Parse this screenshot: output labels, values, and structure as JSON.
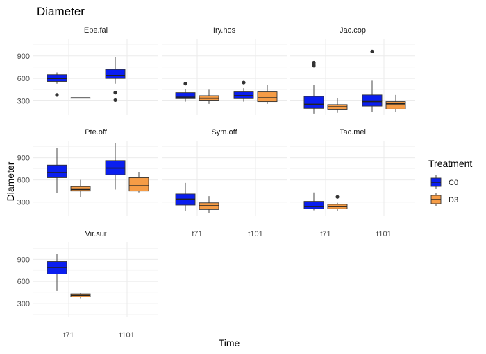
{
  "chart_data": {
    "type": "boxplot",
    "title": "Diameter",
    "xlabel": "Time",
    "ylabel": "Diameter",
    "ylim": [
      110,
      1130
    ],
    "y_ticks": [
      300,
      600,
      900
    ],
    "x_categories": [
      "t71",
      "t101"
    ],
    "grid": "on",
    "legend": {
      "title": "Treatment",
      "placement": "right",
      "entries": [
        {
          "name": "C0",
          "color": "#0a1ef0"
        },
        {
          "name": "D3",
          "color": "#f59c46"
        }
      ]
    },
    "panels": [
      {
        "name": "Epe.fal",
        "boxes": [
          {
            "time": "t71",
            "treatment": "C0",
            "min": 530,
            "q1": 560,
            "median": 600,
            "q3": 650,
            "max": 680,
            "outliers": [
              380
            ]
          },
          {
            "time": "t71",
            "treatment": "D3",
            "min": 340,
            "q1": 340,
            "median": 340,
            "q3": 340,
            "max": 340,
            "outliers": []
          },
          {
            "time": "t101",
            "treatment": "C0",
            "min": 530,
            "q1": 600,
            "median": 640,
            "q3": 720,
            "max": 880,
            "outliers": [
              410,
              310
            ]
          }
        ]
      },
      {
        "name": "Iry.hos",
        "boxes": [
          {
            "time": "t71",
            "treatment": "C0",
            "min": 290,
            "q1": 330,
            "median": 350,
            "q3": 410,
            "max": 460,
            "outliers": [
              530
            ]
          },
          {
            "time": "t71",
            "treatment": "D3",
            "min": 260,
            "q1": 300,
            "median": 335,
            "q3": 370,
            "max": 450,
            "outliers": []
          },
          {
            "time": "t101",
            "treatment": "C0",
            "min": 290,
            "q1": 330,
            "median": 370,
            "q3": 420,
            "max": 470,
            "outliers": [
              545
            ]
          },
          {
            "time": "t101",
            "treatment": "D3",
            "min": 260,
            "q1": 290,
            "median": 340,
            "q3": 420,
            "max": 510,
            "outliers": []
          }
        ]
      },
      {
        "name": "Jac.cop",
        "boxes": [
          {
            "time": "t71",
            "treatment": "C0",
            "min": 130,
            "q1": 200,
            "median": 255,
            "q3": 360,
            "max": 510,
            "outliers": [
              770,
              790,
              810
            ]
          },
          {
            "time": "t71",
            "treatment": "D3",
            "min": 140,
            "q1": 180,
            "median": 220,
            "q3": 250,
            "max": 340,
            "outliers": []
          },
          {
            "time": "t101",
            "treatment": "C0",
            "min": 150,
            "q1": 230,
            "median": 290,
            "q3": 380,
            "max": 570,
            "outliers": [
              960
            ]
          },
          {
            "time": "t101",
            "treatment": "D3",
            "min": 150,
            "q1": 190,
            "median": 260,
            "q3": 290,
            "max": 380,
            "outliers": []
          }
        ]
      },
      {
        "name": "Pte.off",
        "boxes": [
          {
            "time": "t71",
            "treatment": "C0",
            "min": 420,
            "q1": 630,
            "median": 700,
            "q3": 800,
            "max": 1030,
            "outliers": []
          },
          {
            "time": "t71",
            "treatment": "D3",
            "min": 370,
            "q1": 450,
            "median": 470,
            "q3": 510,
            "max": 600,
            "outliers": []
          },
          {
            "time": "t101",
            "treatment": "C0",
            "min": 470,
            "q1": 670,
            "median": 760,
            "q3": 860,
            "max": 1100,
            "outliers": []
          },
          {
            "time": "t101",
            "treatment": "D3",
            "min": 430,
            "q1": 450,
            "median": 520,
            "q3": 630,
            "max": 700,
            "outliers": []
          }
        ]
      },
      {
        "name": "Sym.off",
        "boxes": [
          {
            "time": "t71",
            "treatment": "C0",
            "min": 180,
            "q1": 260,
            "median": 340,
            "q3": 410,
            "max": 560,
            "outliers": []
          },
          {
            "time": "t71",
            "treatment": "D3",
            "min": 150,
            "q1": 200,
            "median": 250,
            "q3": 290,
            "max": 380,
            "outliers": []
          }
        ]
      },
      {
        "name": "Tac.mel",
        "boxes": [
          {
            "time": "t71",
            "treatment": "C0",
            "min": 190,
            "q1": 210,
            "median": 240,
            "q3": 310,
            "max": 430,
            "outliers": []
          },
          {
            "time": "t71",
            "treatment": "D3",
            "min": 180,
            "q1": 210,
            "median": 240,
            "q3": 270,
            "max": 290,
            "outliers": [
              370
            ]
          }
        ]
      },
      {
        "name": "Vir.sur",
        "boxes": [
          {
            "time": "t71",
            "treatment": "C0",
            "min": 470,
            "q1": 700,
            "median": 790,
            "q3": 870,
            "max": 970,
            "outliers": []
          },
          {
            "time": "t71",
            "treatment": "D3",
            "min": 370,
            "q1": 390,
            "median": 410,
            "q3": 430,
            "max": 440,
            "outliers": []
          }
        ]
      }
    ]
  }
}
